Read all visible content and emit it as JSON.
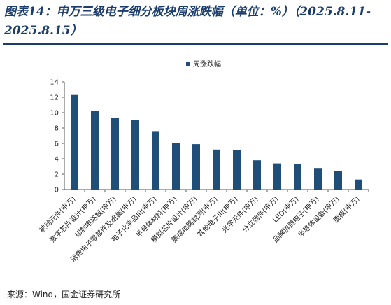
{
  "header": {
    "title": "图表14：申万三级电子细分板块周涨跌幅（单位：%）（2025.8.11-2025.8.15）"
  },
  "footer": {
    "source": "来源：Wind，国金证券研究所"
  },
  "colors": {
    "bar": "#1f4e79",
    "title": "#1b3d6d"
  },
  "chart_data": {
    "type": "bar",
    "categories": [
      "被动元件(申万)",
      "数字芯片设计(申万)",
      "印制电路板(申万)",
      "消费电子零部件及组装(申万)",
      "电子化学品III(申万)",
      "半导体材料(申万)",
      "模拟芯片设计(申万)",
      "集成电路封测(申万)",
      "其他电子III(申万)",
      "光学元件(申万)",
      "分立器件(申万)",
      "LED(申万)",
      "品牌消费电子(申万)",
      "半导体设备(申万)",
      "面板(申万)"
    ],
    "series": [
      {
        "name": "周涨跌幅",
        "values": [
          12.3,
          10.2,
          9.3,
          9.0,
          7.6,
          6.0,
          5.9,
          5.2,
          5.1,
          3.8,
          3.4,
          3.35,
          2.8,
          2.45,
          1.3
        ]
      }
    ],
    "ylim": [
      0,
      14
    ],
    "yticks": [
      0,
      2,
      4,
      6,
      8,
      10,
      12,
      14
    ],
    "legend_position": "top-center",
    "grid": false
  }
}
